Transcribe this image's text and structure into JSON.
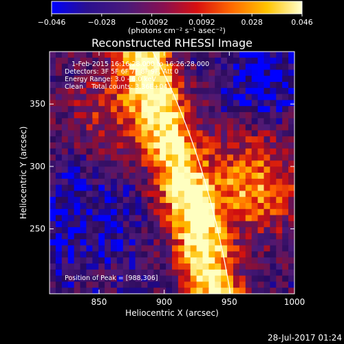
{
  "chart_data": {
    "type": "heatmap",
    "title": "Reconstructed RHESSI Image",
    "colorbar": {
      "min": -0.046,
      "max": 0.046,
      "ticks": [
        "−0.046",
        "−0.028",
        "−0.0092",
        "0.0092",
        "0.028",
        "0.046"
      ],
      "unit_label": "(photons cm⁻² s⁻¹ asec⁻²)",
      "colormap": "rhessi-3 (blue → purple → red → orange → yellow → white)"
    },
    "xlabel": "Heliocentric X (arcsec)",
    "ylabel": "Heliocentric Y (arcsec)",
    "x_ticks": [
      850,
      900,
      950,
      1000
    ],
    "y_ticks": [
      250,
      300,
      350
    ],
    "xlim": [
      812,
      1000
    ],
    "ylim": [
      198,
      392
    ],
    "annotations": [
      "1-Feb-2015 16:16:28.000 to 16:26:28.000",
      "Detectors: 3F 5F 6F 7F 8F 9F, Att 0",
      "Energy Range: 3.0 - 6.0 keV",
      "Clean    Total counts: 3.36E+04"
    ],
    "peak_label": "Position of Peak = [988,306]",
    "peak_position": [
      988,
      306
    ],
    "limb": "white solar limb arc from top-center to lower right",
    "timestamp": "28-Jul-2017 01:24"
  },
  "colors": {
    "background": "#000000",
    "colormap_stops": [
      "#0000ff",
      "#2a0a5a",
      "#4a1a7a",
      "#7a1040",
      "#d01010",
      "#ff6000",
      "#ffc000",
      "#ffffc0"
    ],
    "limb": "#ffffff"
  }
}
